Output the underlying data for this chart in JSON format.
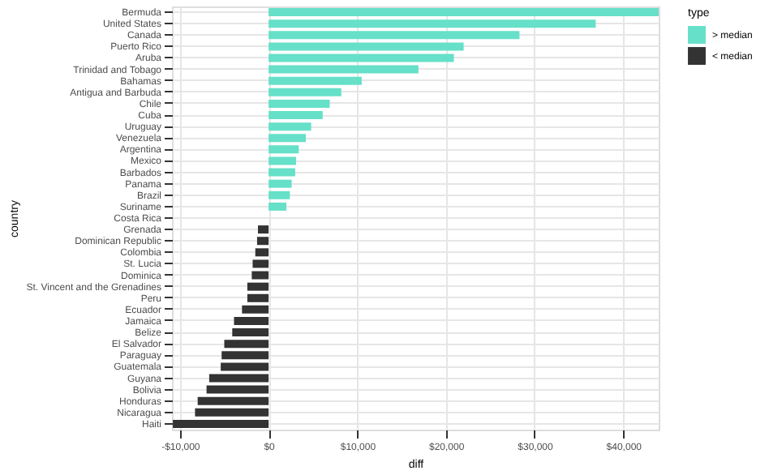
{
  "chart_data": {
    "type": "bar",
    "orientation": "horizontal",
    "xlabel": "diff",
    "ylabel": "country",
    "legend_title": "type",
    "categories": [
      "Bermuda",
      "United States",
      "Canada",
      "Puerto Rico",
      "Aruba",
      "Trinidad and Tobago",
      "Bahamas",
      "Antigua and Barbuda",
      "Chile",
      "Cuba",
      "Uruguay",
      "Venezuela",
      "Argentina",
      "Mexico",
      "Barbados",
      "Panama",
      "Brazil",
      "Suriname",
      "Costa Rica",
      "Grenada",
      "Dominican Republic",
      "Colombia",
      "St. Lucia",
      "Dominica",
      "St. Vincent and the Grenadines",
      "Peru",
      "Ecuador",
      "Jamaica",
      "Belize",
      "El Salvador",
      "Paraguay",
      "Guatemala",
      "Guyana",
      "Bolivia",
      "Honduras",
      "Nicaragua",
      "Haiti"
    ],
    "series": [
      {
        "name": "> median",
        "color": "#66e0c8",
        "values": [
          44000,
          36900,
          28300,
          22000,
          20900,
          16900,
          10500,
          8200,
          6900,
          6100,
          4800,
          4200,
          3400,
          3100,
          3000,
          2600,
          2400,
          2000,
          null,
          null,
          null,
          null,
          null,
          null,
          null,
          null,
          null,
          null,
          null,
          null,
          null,
          null,
          null,
          null,
          null,
          null,
          null
        ]
      },
      {
        "name": "< median",
        "color": "#333333",
        "values": [
          null,
          null,
          null,
          null,
          null,
          null,
          null,
          null,
          null,
          null,
          null,
          null,
          null,
          null,
          null,
          null,
          null,
          null,
          0,
          -1200,
          -1300,
          -1500,
          -1800,
          -1900,
          -2400,
          -2400,
          -3000,
          -3900,
          -4100,
          -5000,
          -5300,
          -5400,
          -6700,
          -7000,
          -8000,
          -8300,
          -10800
        ]
      }
    ],
    "xlim": [
      -10900,
      44000
    ],
    "xticks": [
      {
        "value": -10000,
        "label": "-$10,000"
      },
      {
        "value": 0,
        "label": "$0"
      },
      {
        "value": 10000,
        "label": "$10,000"
      },
      {
        "value": 20000,
        "label": "$20,000"
      },
      {
        "value": 30000,
        "label": "$30,000"
      },
      {
        "value": 40000,
        "label": "$40,000"
      }
    ],
    "grid": true,
    "legend": "right"
  }
}
